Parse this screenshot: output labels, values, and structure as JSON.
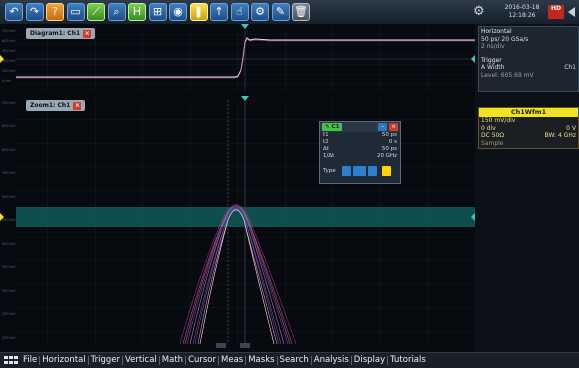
{
  "toolbar": {
    "buttons": [
      {
        "name": "back-button",
        "glyph": "↶"
      },
      {
        "name": "forward-button",
        "glyph": "↷"
      },
      {
        "name": "help-button",
        "glyph": "?"
      },
      {
        "name": "save-button",
        "glyph": "▭"
      },
      {
        "name": "signal-button",
        "glyph": "⟋"
      },
      {
        "name": "zoom-button",
        "glyph": "⌕"
      },
      {
        "name": "histogram-button",
        "glyph": "H"
      },
      {
        "name": "mask-button",
        "glyph": "⊞"
      },
      {
        "name": "camera-button",
        "glyph": "◉"
      },
      {
        "name": "marker-button",
        "glyph": "❚"
      },
      {
        "name": "step-button",
        "glyph": "↑"
      },
      {
        "name": "touch-button",
        "glyph": "☝"
      },
      {
        "name": "settings-button",
        "glyph": "⚙"
      },
      {
        "name": "tools-button",
        "glyph": "✎"
      },
      {
        "name": "delete-button",
        "glyph": "🗑"
      }
    ],
    "date": "2016-03-18",
    "time": "12:18:26",
    "hd_label": "HD"
  },
  "top_panel": {
    "tab": "Diagram1: Ch1"
  },
  "zoom_panel": {
    "tab": "Zoom1: Ch1"
  },
  "info_panel": {
    "title": "Horizontal",
    "sample": "50 ps/ 20 GSa/s",
    "time_div": "2 ns/div",
    "trigger_label": "Trigger",
    "trigger_type": "A Width",
    "trigger_ch": "Ch1",
    "trigger_level": "Level: 605.69 mV"
  },
  "waveform_info": {
    "title": "Ch1Wfm1",
    "scale": "150 mV/div",
    "offset": "0 div",
    "offset_v": "0 V",
    "coupling": "DC 50Ω",
    "bw": "BW: 4 GHz",
    "mode": "Sample"
  },
  "dialog": {
    "title": "C1",
    "rows": [
      {
        "label": "t1",
        "value": "50 ps"
      },
      {
        "label": "t2",
        "value": "0 s"
      },
      {
        "label": "Δt",
        "value": "50 ps"
      },
      {
        "label": "1/Δt",
        "value": "20 GHz"
      }
    ],
    "type_label": "Type"
  },
  "menu": [
    "File",
    "Horizontal",
    "Trigger",
    "Vertical",
    "Math",
    "Cursor",
    "Meas",
    "Masks",
    "Search",
    "Analysis",
    "Display",
    "Tutorials"
  ],
  "colors": {
    "accent": "#f3e21f",
    "trace": "#d96aa3",
    "band": "#0f5a57"
  }
}
